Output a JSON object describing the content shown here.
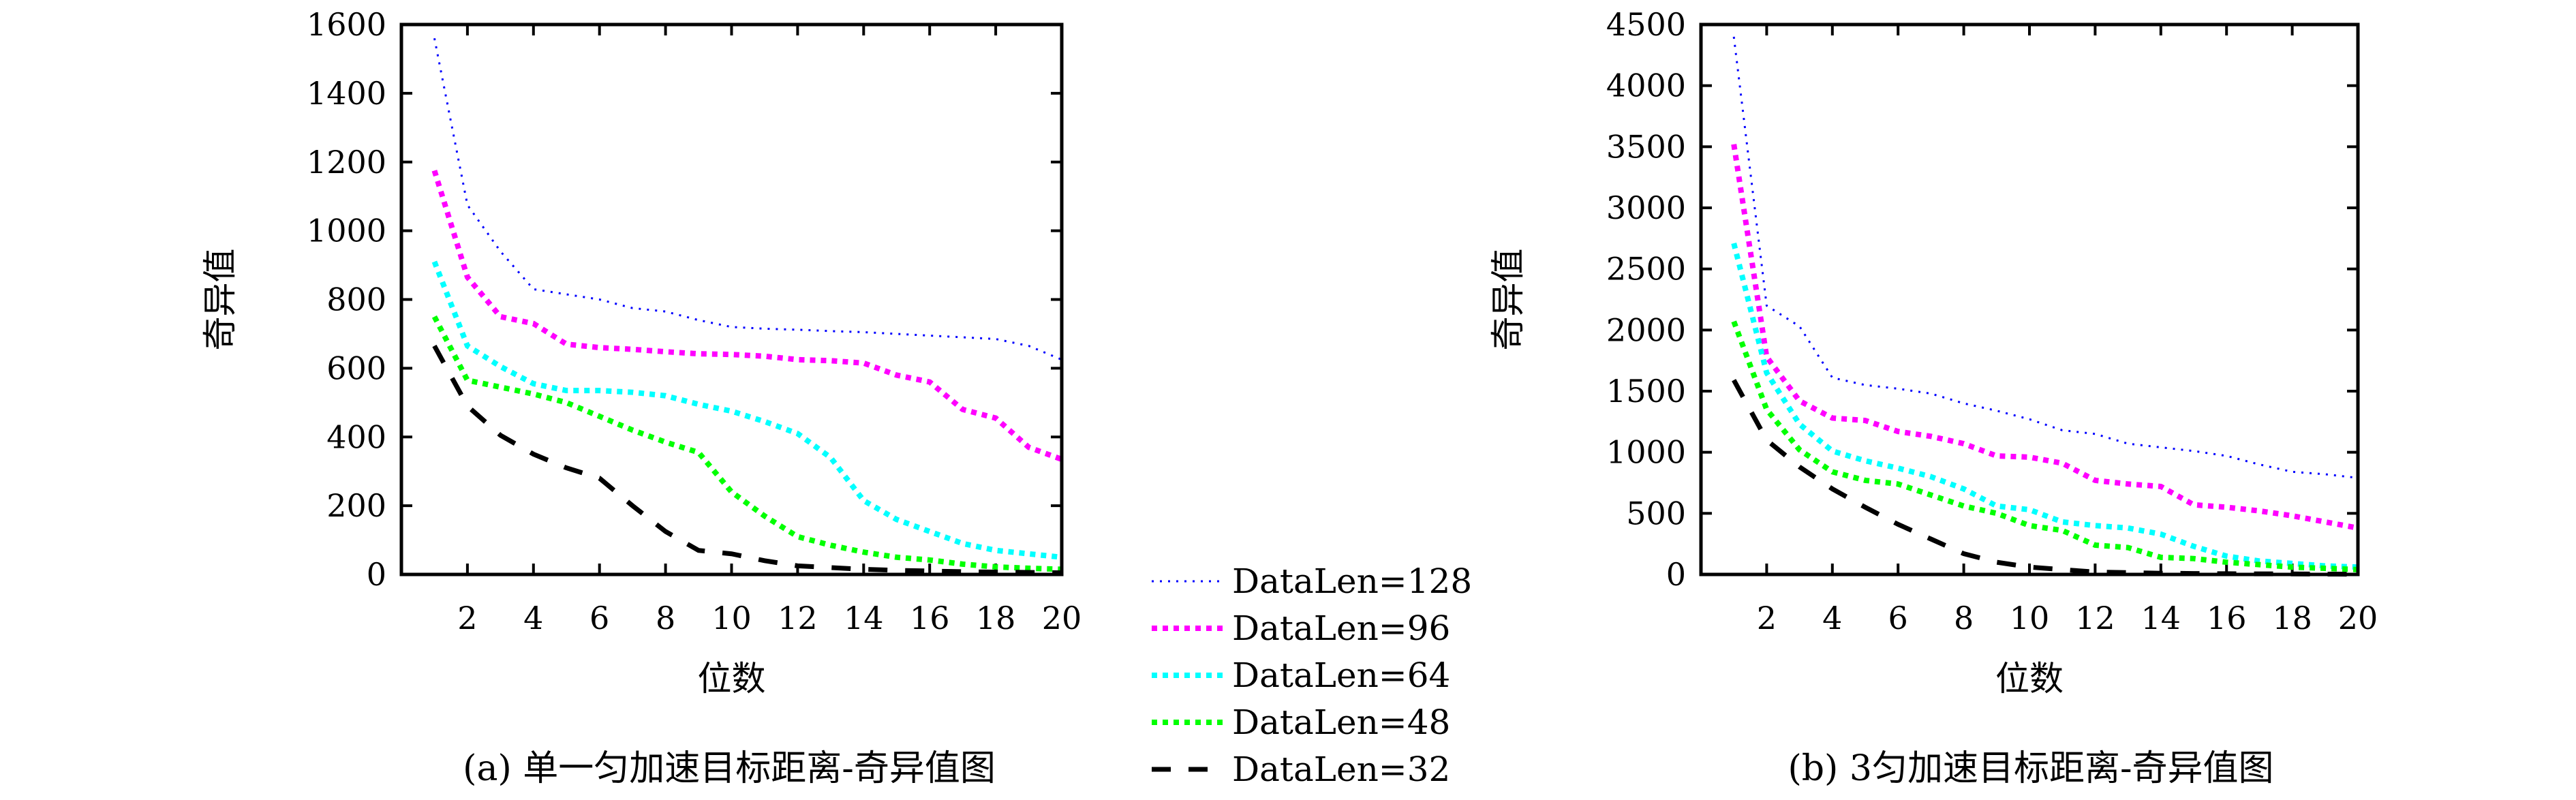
{
  "chart_data": [
    {
      "type": "line",
      "caption": "(a) 单一匀加速目标距离-奇异值图",
      "xlabel": "位数",
      "ylabel": "奇异值",
      "xlim": [
        0,
        20
      ],
      "ylim": [
        0,
        1600
      ],
      "xticks": [
        2,
        4,
        6,
        8,
        10,
        12,
        14,
        16,
        18,
        20
      ],
      "yticks": [
        0,
        200,
        400,
        600,
        800,
        1000,
        1200,
        1400,
        1600
      ],
      "x": [
        1,
        2,
        3,
        4,
        5,
        6,
        7,
        8,
        9,
        10,
        11,
        12,
        13,
        14,
        15,
        16,
        17,
        18,
        19,
        20
      ],
      "series": [
        {
          "name": "DataLen=128",
          "values": [
            1560,
            1075,
            940,
            830,
            815,
            800,
            775,
            765,
            740,
            720,
            715,
            712,
            708,
            705,
            700,
            695,
            690,
            685,
            665,
            625
          ]
        },
        {
          "name": "DataLen=96",
          "values": [
            1175,
            865,
            750,
            730,
            670,
            660,
            655,
            648,
            642,
            640,
            635,
            625,
            622,
            615,
            580,
            560,
            480,
            455,
            370,
            335
          ]
        },
        {
          "name": "DataLen=64",
          "values": [
            910,
            665,
            605,
            555,
            535,
            535,
            530,
            520,
            495,
            475,
            445,
            410,
            340,
            215,
            160,
            125,
            90,
            70,
            60,
            50
          ]
        },
        {
          "name": "DataLen=48",
          "values": [
            750,
            565,
            545,
            525,
            500,
            460,
            420,
            385,
            355,
            240,
            170,
            110,
            85,
            65,
            50,
            42,
            30,
            22,
            18,
            15
          ]
        },
        {
          "name": "DataLen=32",
          "values": [
            665,
            490,
            405,
            350,
            310,
            280,
            200,
            125,
            70,
            60,
            40,
            25,
            20,
            15,
            12,
            10,
            8,
            7,
            6,
            5
          ]
        }
      ]
    },
    {
      "type": "line",
      "caption": "(b) 3匀加速目标距离-奇异值图",
      "xlabel": "位数",
      "ylabel": "奇异值",
      "xlim": [
        0,
        20
      ],
      "ylim": [
        0,
        4500
      ],
      "xticks": [
        2,
        4,
        6,
        8,
        10,
        12,
        14,
        16,
        18,
        20
      ],
      "yticks": [
        0,
        500,
        1000,
        1500,
        2000,
        2500,
        3000,
        3500,
        4000,
        4500
      ],
      "x": [
        1,
        2,
        3,
        4,
        5,
        6,
        7,
        8,
        9,
        10,
        11,
        12,
        13,
        14,
        15,
        16,
        17,
        18,
        19,
        20
      ],
      "series": [
        {
          "name": "DataLen=128",
          "values": [
            4400,
            2200,
            2030,
            1610,
            1550,
            1520,
            1480,
            1400,
            1340,
            1270,
            1180,
            1150,
            1070,
            1040,
            1010,
            970,
            900,
            840,
            820,
            790
          ]
        },
        {
          "name": "DataLen=96",
          "values": [
            3520,
            1780,
            1420,
            1280,
            1260,
            1170,
            1130,
            1070,
            970,
            960,
            910,
            770,
            740,
            720,
            570,
            550,
            520,
            480,
            430,
            380
          ]
        },
        {
          "name": "DataLen=64",
          "values": [
            2710,
            1650,
            1230,
            1010,
            930,
            870,
            800,
            700,
            560,
            530,
            430,
            400,
            380,
            330,
            230,
            150,
            110,
            90,
            70,
            60
          ]
        },
        {
          "name": "DataLen=48",
          "values": [
            2070,
            1350,
            1020,
            840,
            770,
            740,
            650,
            560,
            500,
            400,
            360,
            240,
            220,
            140,
            130,
            100,
            80,
            60,
            50,
            40
          ]
        },
        {
          "name": "DataLen=32",
          "values": [
            1590,
            1100,
            880,
            700,
            550,
            410,
            290,
            170,
            100,
            60,
            40,
            20,
            15,
            10,
            8,
            6,
            5,
            4,
            3,
            2
          ]
        }
      ]
    }
  ],
  "legend": {
    "placement": "bottom-center",
    "entries": [
      {
        "label": "DataLen=128",
        "color": "#0000ff",
        "style": "dotted-thin"
      },
      {
        "label": "DataLen=96",
        "color": "#ff00ff",
        "style": "dotted-thick"
      },
      {
        "label": "DataLen=64",
        "color": "#00ffff",
        "style": "dotted-thick"
      },
      {
        "label": "DataLen=48",
        "color": "#00ff00",
        "style": "dotted-thick"
      },
      {
        "label": "DataLen=32",
        "color": "#000000",
        "style": "dashed"
      }
    ]
  }
}
